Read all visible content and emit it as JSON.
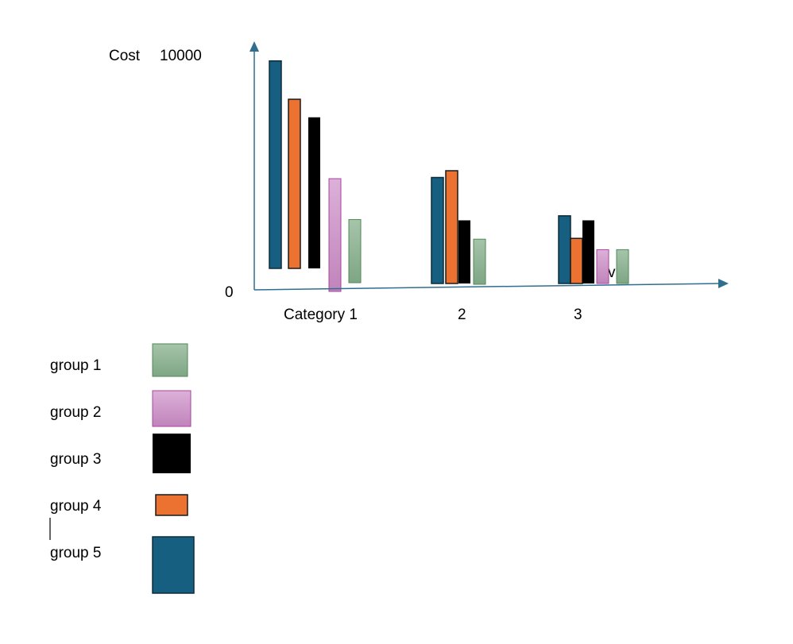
{
  "chart_data": {
    "type": "bar",
    "ylabel": "Cost",
    "ylim": [
      0,
      10000
    ],
    "y_tick_labels": [
      "0",
      "10000"
    ],
    "categories": [
      "Category 1",
      "2",
      "3"
    ],
    "series": [
      {
        "name": "group 5",
        "color": "#175f80",
        "values": [
          9200,
          4700,
          3000
        ]
      },
      {
        "name": "group 4",
        "color": "#ec7231",
        "values": [
          7500,
          5000,
          2000
        ]
      },
      {
        "name": "group 3",
        "color": "#000000",
        "values": [
          6700,
          2800,
          2800
        ]
      },
      {
        "name": "group 2",
        "color": "#c98fc4",
        "values": [
          5000,
          0,
          1500
        ]
      },
      {
        "name": "group 1",
        "color": "#8fb596",
        "values": [
          2800,
          2000,
          1500
        ]
      }
    ],
    "annotations": [
      "v"
    ],
    "legend": {
      "placement": "bottom-left",
      "entries": [
        "group 1",
        "group 2",
        "group 3",
        "group 4",
        "group 5"
      ]
    },
    "grid": false
  }
}
